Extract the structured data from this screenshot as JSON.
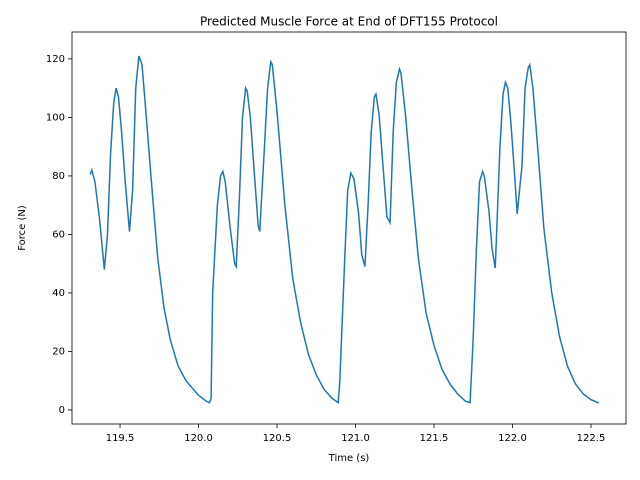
{
  "chart_data": {
    "type": "line",
    "title": "Predicted Muscle Force at End of DFT155 Protocol",
    "x_label": "Time (s)",
    "y_label": "Force (N)",
    "x": [
      119.31,
      119.32,
      119.34,
      119.37,
      119.4,
      119.42,
      119.44,
      119.46,
      119.475,
      119.49,
      119.51,
      119.53,
      119.56,
      119.58,
      119.6,
      119.62,
      119.64,
      119.66,
      119.7,
      119.74,
      119.78,
      119.82,
      119.87,
      119.92,
      120.0,
      120.05,
      120.07,
      120.08,
      120.09,
      120.12,
      120.14,
      120.155,
      120.17,
      120.2,
      120.23,
      120.24,
      120.26,
      120.28,
      120.3,
      120.31,
      120.33,
      120.35,
      120.38,
      120.39,
      120.42,
      120.44,
      120.46,
      120.47,
      120.5,
      120.55,
      120.6,
      120.65,
      120.7,
      120.75,
      120.8,
      120.85,
      120.89,
      120.9,
      120.93,
      120.95,
      120.97,
      120.99,
      121.02,
      121.04,
      121.06,
      121.08,
      121.1,
      121.12,
      121.13,
      121.15,
      121.17,
      121.2,
      121.22,
      121.24,
      121.26,
      121.28,
      121.29,
      121.32,
      121.36,
      121.4,
      121.45,
      121.5,
      121.55,
      121.6,
      121.65,
      121.7,
      121.73,
      121.75,
      121.77,
      121.79,
      121.81,
      121.82,
      121.85,
      121.87,
      121.89,
      121.9,
      121.92,
      121.94,
      121.955,
      121.97,
      121.99,
      122.01,
      122.03,
      122.05,
      122.06,
      122.08,
      122.1,
      122.11,
      122.13,
      122.16,
      122.2,
      122.25,
      122.3,
      122.35,
      122.4,
      122.45,
      122.5,
      122.55
    ],
    "series": [
      {
        "color": "#1f77b4",
        "values": [
          80.5,
          82,
          78,
          65,
          48,
          60,
          88,
          105,
          110,
          107,
          95,
          80,
          61,
          75,
          110,
          121,
          118,
          105,
          78,
          52,
          35,
          24,
          15,
          10,
          5,
          3,
          2.5,
          4,
          40,
          70,
          80,
          81.5,
          78,
          63,
          50,
          49,
          72,
          100,
          110,
          109,
          100,
          85,
          63,
          61,
          90,
          110,
          119,
          118,
          102,
          70,
          45,
          30,
          19,
          12,
          7,
          4,
          2.5,
          10,
          50,
          75,
          81,
          79,
          67,
          53,
          49,
          70,
          95,
          107,
          108,
          101,
          87,
          66,
          64,
          95,
          112,
          116.5,
          115,
          100,
          75,
          52,
          33,
          22,
          14,
          9,
          5.5,
          3,
          2.5,
          25,
          55,
          78,
          81.5,
          80,
          68,
          55,
          48.5,
          62,
          90,
          108,
          112,
          110,
          98,
          83,
          67,
          78,
          83,
          110,
          117,
          118,
          110,
          90,
          62,
          40,
          25,
          15,
          9,
          5.5,
          3.5,
          2.4
        ]
      }
    ],
    "xlim": [
      119.194,
      122.723
    ],
    "ylim": [
      -4.8,
      129.2
    ],
    "xticks": [
      {
        "value": 119.5,
        "label": "119.5"
      },
      {
        "value": 120,
        "label": "120.0"
      },
      {
        "value": 120.5,
        "label": "120.5"
      },
      {
        "value": 121,
        "label": "121.0"
      },
      {
        "value": 121.5,
        "label": "121.5"
      },
      {
        "value": 122,
        "label": "122.0"
      },
      {
        "value": 122.5,
        "label": "122.5"
      }
    ],
    "yticks": [
      0,
      20,
      40,
      60,
      80,
      100,
      120
    ]
  }
}
